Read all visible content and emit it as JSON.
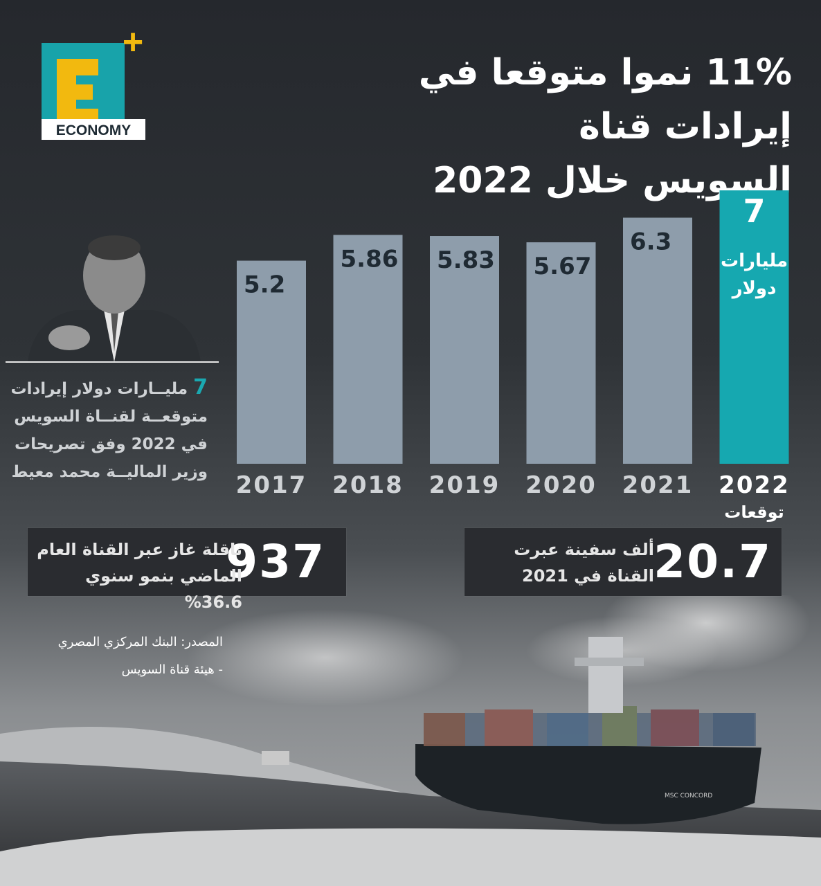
{
  "title": {
    "line1": "11% نموا متوقعا في إيرادات قناة",
    "line2": "السويس خلال 2022"
  },
  "logo": {
    "letter": "E",
    "plus": "+",
    "word": "ECONOMY"
  },
  "quote": {
    "number": "7",
    "text": "مليــارات دولار إيرادات متوقعــة لقنــاة السويس في 2022 وفق تصريحات وزير الماليــة محمد معيط"
  },
  "stats": {
    "left": {
      "value": "937",
      "text": "ناقلة غاز عبر القناة العام الماضي بنمو سنوي 36.6%"
    },
    "right": {
      "value": "20.7",
      "text": "ألف سفينة عبرت القناة في 2021"
    }
  },
  "source": {
    "line1": "المصدر: البنك المركزي المصري",
    "line2": "- هيئة قناة السويس"
  },
  "colors": {
    "bar": "#8e9dab",
    "highlight": "#16a8b0",
    "value_text": "#1f2a33",
    "year_text": "#d0d3d6"
  },
  "chart_data": {
    "type": "bar",
    "categories": [
      "2017",
      "2018",
      "2019",
      "2020",
      "2021",
      "2022"
    ],
    "values": [
      5.2,
      5.86,
      5.83,
      5.67,
      6.3,
      7
    ],
    "value_labels": [
      "5.2",
      "5.86",
      "5.83",
      "5.67",
      "6.3",
      "7"
    ],
    "highlight": {
      "category": "2022",
      "unit_line1": "مليارات",
      "unit_line2": "دولار",
      "sublabel": "توقعات"
    },
    "title": "",
    "xlabel": "",
    "ylabel": ""
  }
}
